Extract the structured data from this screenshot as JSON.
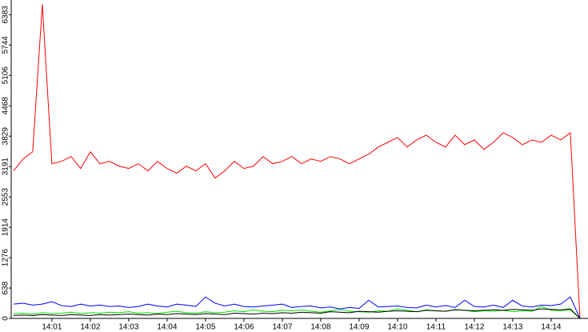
{
  "chart_data": {
    "type": "line",
    "x": [
      0,
      0.25,
      0.5,
      0.75,
      1,
      1.25,
      1.5,
      1.75,
      2,
      2.25,
      2.5,
      2.75,
      3,
      3.25,
      3.5,
      3.75,
      4,
      4.25,
      4.5,
      4.75,
      5,
      5.25,
      5.5,
      5.75,
      6,
      6.25,
      6.5,
      6.75,
      7,
      7.25,
      7.5,
      7.75,
      8,
      8.25,
      8.5,
      8.75,
      9,
      9.25,
      9.5,
      9.75,
      10,
      10.25,
      10.5,
      10.75,
      11,
      11.25,
      11.5,
      11.75,
      12,
      12.25,
      12.5,
      12.75,
      13,
      13.25,
      13.5,
      13.75,
      14,
      14.25,
      14.5,
      14.75
    ],
    "series": [
      {
        "color": "#ff0000",
        "values": [
          3100,
          3350,
          3500,
          6600,
          3250,
          3300,
          3400,
          3150,
          3500,
          3250,
          3300,
          3200,
          3150,
          3250,
          3100,
          3300,
          3150,
          3050,
          3200,
          3100,
          3250,
          2950,
          3100,
          3300,
          3150,
          3200,
          3400,
          3250,
          3300,
          3400,
          3250,
          3350,
          3300,
          3400,
          3350,
          3250,
          3350,
          3450,
          3600,
          3700,
          3800,
          3600,
          3750,
          3850,
          3700,
          3600,
          3850,
          3650,
          3750,
          3550,
          3700,
          3900,
          3800,
          3650,
          3750,
          3700,
          3850,
          3750,
          3900,
          0
        ]
      },
      {
        "color": "#0000ff",
        "values": [
          300,
          320,
          280,
          300,
          350,
          270,
          250,
          300,
          260,
          280,
          250,
          260,
          230,
          250,
          300,
          260,
          240,
          300,
          280,
          250,
          450,
          320,
          260,
          300,
          250,
          240,
          260,
          280,
          300,
          230,
          250,
          260,
          220,
          240,
          200,
          230,
          210,
          380,
          240,
          250,
          260,
          230,
          220,
          280,
          240,
          270,
          230,
          380,
          250,
          240,
          280,
          230,
          380,
          260,
          240,
          280,
          270,
          300,
          450,
          0
        ]
      },
      {
        "color": "#00e000",
        "values": [
          100,
          110,
          90,
          120,
          100,
          110,
          130,
          100,
          120,
          110,
          130,
          120,
          140,
          110,
          120,
          100,
          130,
          150,
          120,
          110,
          140,
          120,
          130,
          160,
          140,
          180,
          150,
          140,
          170,
          160,
          180,
          150,
          130,
          160,
          190,
          150,
          140,
          130,
          160,
          150,
          200,
          170,
          140,
          180,
          160,
          150,
          190,
          170,
          140,
          160,
          150,
          170,
          140,
          160,
          150,
          250,
          170,
          160,
          180,
          0
        ]
      },
      {
        "color": "#000000",
        "values": [
          60,
          70,
          60,
          80,
          70,
          60,
          80,
          70,
          60,
          80,
          70,
          80,
          90,
          80,
          70,
          90,
          80,
          100,
          90,
          80,
          100,
          90,
          80,
          110,
          100,
          90,
          110,
          100,
          120,
          110,
          130,
          120,
          110,
          140,
          130,
          120,
          150,
          140,
          130,
          150,
          160,
          150,
          140,
          170,
          160,
          150,
          180,
          170,
          160,
          170,
          180,
          170,
          190,
          180,
          170,
          200,
          190,
          180,
          200,
          0
        ]
      }
    ],
    "xlim": [
      -0.06,
      14.96
    ],
    "xticks": [
      {
        "value": 1,
        "label": "14:01"
      },
      {
        "value": 2,
        "label": "14:02"
      },
      {
        "value": 3,
        "label": "14:03"
      },
      {
        "value": 4,
        "label": "14:04"
      },
      {
        "value": 5,
        "label": "14:05"
      },
      {
        "value": 6,
        "label": "14:06"
      },
      {
        "value": 7,
        "label": "14:07"
      },
      {
        "value": 8,
        "label": "14:08"
      },
      {
        "value": 9,
        "label": "14:09"
      },
      {
        "value": 10,
        "label": "14:10"
      },
      {
        "value": 11,
        "label": "14:11"
      },
      {
        "value": 12,
        "label": "14:12"
      },
      {
        "value": 13,
        "label": "14:13"
      },
      {
        "value": 14,
        "label": "14:14"
      }
    ],
    "ylim": [
      0,
      6690
    ],
    "yticks": [
      0,
      638,
      1276,
      1914,
      2553,
      3191,
      3829,
      4468,
      5106,
      5744,
      6383
    ]
  }
}
